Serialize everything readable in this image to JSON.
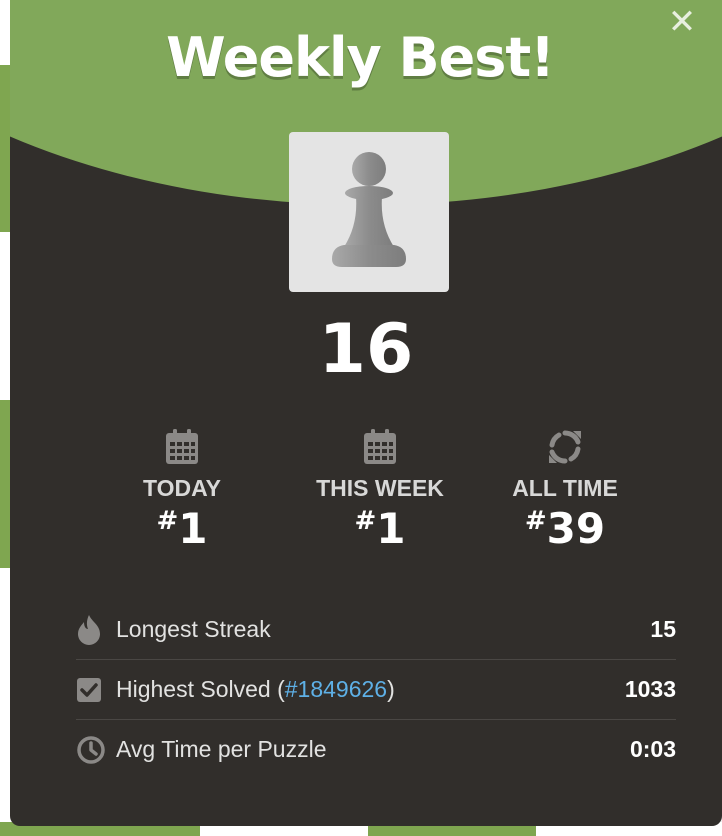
{
  "modal": {
    "title": "Weekly Best!",
    "close_label": "✕",
    "piece_icon": "pawn-icon",
    "score": "16"
  },
  "stats": [
    {
      "icon": "calendar-icon",
      "label": "TODAY",
      "hash": "#",
      "rank": "1"
    },
    {
      "icon": "calendar-icon",
      "label": "THIS WEEK",
      "hash": "#",
      "rank": "1"
    },
    {
      "icon": "refresh-icon",
      "label": "ALL TIME",
      "hash": "#",
      "rank": "39"
    }
  ],
  "details": {
    "streak": {
      "icon": "flame-icon",
      "label": "Longest Streak",
      "value": "15"
    },
    "solved": {
      "icon": "checkbox-icon",
      "label_prefix": "Highest Solved (",
      "link": "#1849626",
      "label_suffix": ")",
      "value": "1033"
    },
    "avg_time": {
      "icon": "clock-icon",
      "label": "Avg Time per Puzzle",
      "value": "0:03"
    }
  },
  "colors": {
    "header_green": "#81a85a",
    "modal_bg": "#312e2b",
    "link_blue": "#5eb0e6"
  }
}
